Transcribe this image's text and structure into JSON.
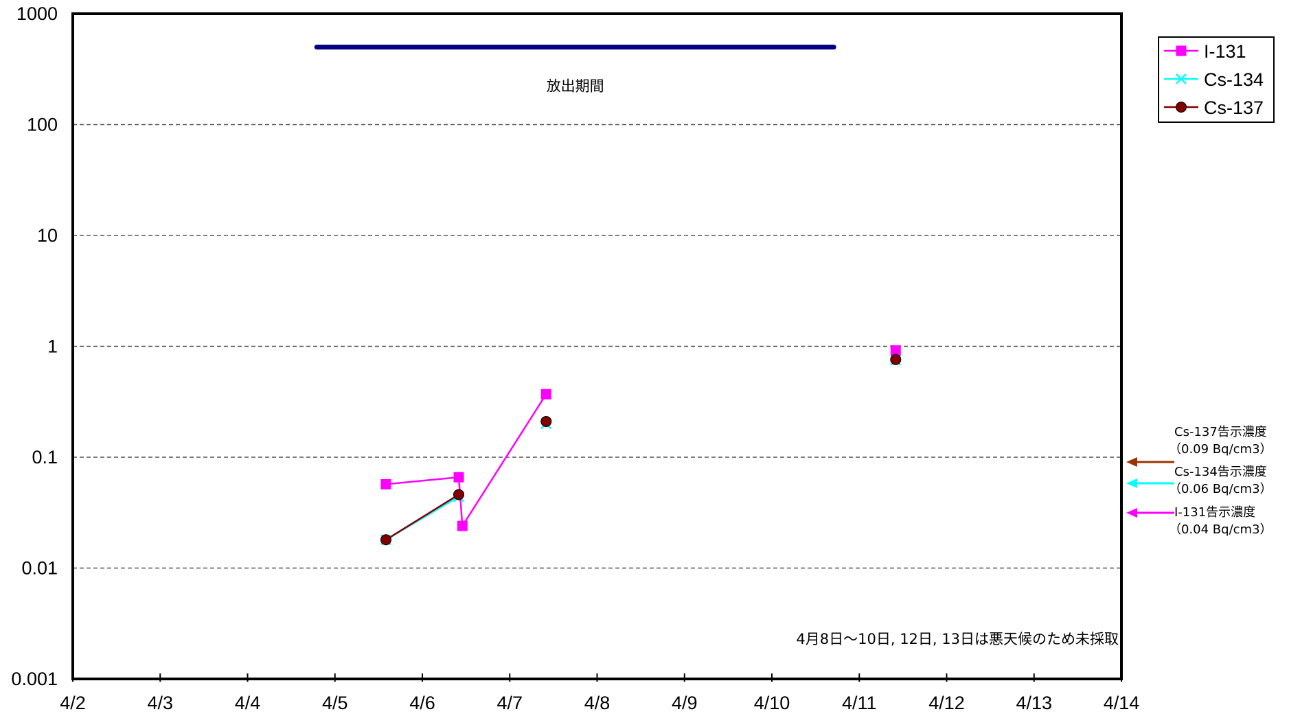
{
  "chart_data": {
    "type": "scatter",
    "y_scale": "log",
    "ylim": [
      0.001,
      1000
    ],
    "y_ticks": [
      "0.001",
      "0.01",
      "0.1",
      "1",
      "10",
      "100",
      "1000"
    ],
    "x_ticks": [
      "4/2",
      "4/3",
      "4/4",
      "4/5",
      "4/6",
      "4/7",
      "4/8",
      "4/9",
      "4/10",
      "4/11",
      "4/12",
      "4/13",
      "4/14"
    ],
    "grid": "horizontal dashed",
    "legend_position": "top-right",
    "series": [
      {
        "name": "I-131",
        "color": "#ff00ff",
        "marker": "square",
        "segments": [
          [
            {
              "x": "4/5 14:00",
              "y": 0.057
            },
            {
              "x": "4/6 10:00",
              "y": 0.066
            },
            {
              "x": "4/6 11:00",
              "y": 0.024
            },
            {
              "x": "4/7 10:00",
              "y": 0.37
            }
          ],
          [
            {
              "x": "4/11 10:00",
              "y": 0.92
            }
          ]
        ]
      },
      {
        "name": "Cs-134",
        "color": "#00ffff",
        "marker": "x",
        "segments": [
          [
            {
              "x": "4/5 14:00",
              "y": 0.018
            },
            {
              "x": "4/6 10:00",
              "y": 0.044
            }
          ],
          [
            {
              "x": "4/7 10:00",
              "y": 0.2
            }
          ],
          [
            {
              "x": "4/11 10:00",
              "y": 0.75
            }
          ]
        ]
      },
      {
        "name": "Cs-137",
        "color": "#800000",
        "marker": "circle",
        "segments": [
          [
            {
              "x": "4/5 14:00",
              "y": 0.018
            },
            {
              "x": "4/6 10:00",
              "y": 0.046
            }
          ],
          [
            {
              "x": "4/7 10:00",
              "y": 0.21
            }
          ],
          [
            {
              "x": "4/11 10:00",
              "y": 0.76
            }
          ]
        ]
      }
    ],
    "release_period": {
      "label": "放出期間",
      "x_start": "4/4 19:00",
      "x_end": "4/10 17:00",
      "y": 500,
      "color": "#000080"
    },
    "note": "4月8日～10日, 12日, 13日は悪天候のため未採取",
    "reference_levels": [
      {
        "name": "Cs-137告示濃度",
        "value_label": "（0.09 Bq/cm3）",
        "value": 0.09,
        "color": "#993300"
      },
      {
        "name": "Cs-134告示濃度",
        "value_label": "（0.06 Bq/cm3）",
        "value": 0.06,
        "color": "#00ffff"
      },
      {
        "name": "I-131告示濃度",
        "value_label": "（0.04 Bq/cm3）",
        "value": 0.04,
        "color": "#ff00ff"
      }
    ]
  }
}
